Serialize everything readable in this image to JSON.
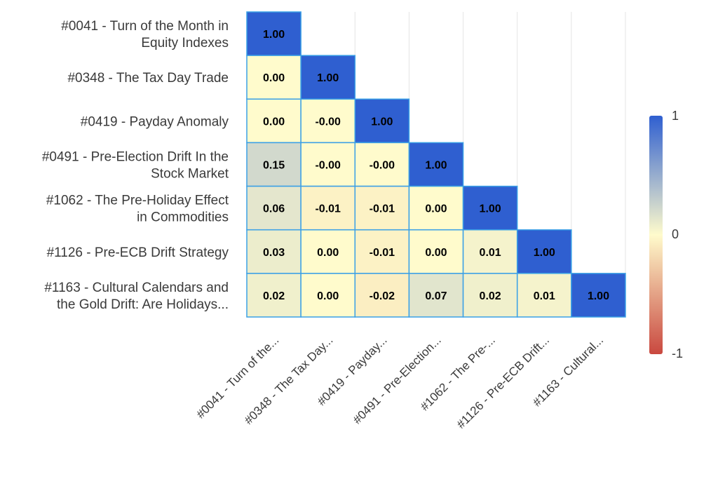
{
  "chart_data": {
    "type": "heatmap",
    "title": "",
    "row_labels": [
      "#0041 - Turn of the Month in Equity Indexes",
      "#0348 - The Tax Day Trade",
      "#0419 - Payday Anomaly",
      "#0491 - Pre-Election Drift In the Stock Market",
      "#1062 - The Pre-Holiday Effect in Commodities",
      "#1126 - Pre-ECB Drift Strategy",
      "#1163 - Cultural Calendars and the Gold Drift: Are Holidays..."
    ],
    "row_label_lines": [
      [
        "#0041 - Turn of the Month in",
        "Equity Indexes"
      ],
      [
        "#0348 - The Tax Day Trade"
      ],
      [
        "#0419 - Payday Anomaly"
      ],
      [
        "#0491 - Pre-Election Drift In the",
        "Stock Market"
      ],
      [
        "#1062 - The Pre-Holiday Effect",
        "in Commodities"
      ],
      [
        "#1126 - Pre-ECB Drift Strategy"
      ],
      [
        "#1163 - Cultural Calendars and",
        "the Gold Drift: Are Holidays..."
      ]
    ],
    "col_labels": [
      "#0041 - Turn of the...",
      "#0348 - The Tax Day...",
      "#0419 - Payday...",
      "#0491 - Pre-Election...",
      "#1062 - The Pre-...",
      "#1126 - Pre-ECB Drift...",
      "#1163 - Cultural..."
    ],
    "values": [
      [
        1.0
      ],
      [
        0.0,
        1.0
      ],
      [
        0.0,
        -0.0,
        1.0
      ],
      [
        0.15,
        -0.0,
        -0.0,
        1.0
      ],
      [
        0.06,
        -0.01,
        -0.01,
        0.0,
        1.0
      ],
      [
        0.03,
        0.0,
        -0.01,
        0.0,
        0.01,
        1.0
      ],
      [
        0.02,
        0.0,
        -0.02,
        0.07,
        0.02,
        0.01,
        1.0
      ]
    ],
    "value_labels": [
      [
        "1.00"
      ],
      [
        "0.00",
        "1.00"
      ],
      [
        "0.00",
        "-0.00",
        "1.00"
      ],
      [
        "0.15",
        "-0.00",
        "-0.00",
        "1.00"
      ],
      [
        "0.06",
        "-0.01",
        "-0.01",
        "0.00",
        "1.00"
      ],
      [
        "0.03",
        "0.00",
        "-0.01",
        "0.00",
        "0.01",
        "1.00"
      ],
      [
        "0.02",
        "0.00",
        "-0.02",
        "0.07",
        "0.02",
        "0.01",
        "1.00"
      ]
    ],
    "color_scale": {
      "min": -1,
      "mid": 0,
      "max": 1,
      "tick_labels": [
        "1",
        "0",
        "-1"
      ],
      "colors": [
        "#c9483f",
        "#fffbcc",
        "#2f5fd0"
      ]
    },
    "cell_border_color": "#3aa0e6",
    "grid": true
  }
}
